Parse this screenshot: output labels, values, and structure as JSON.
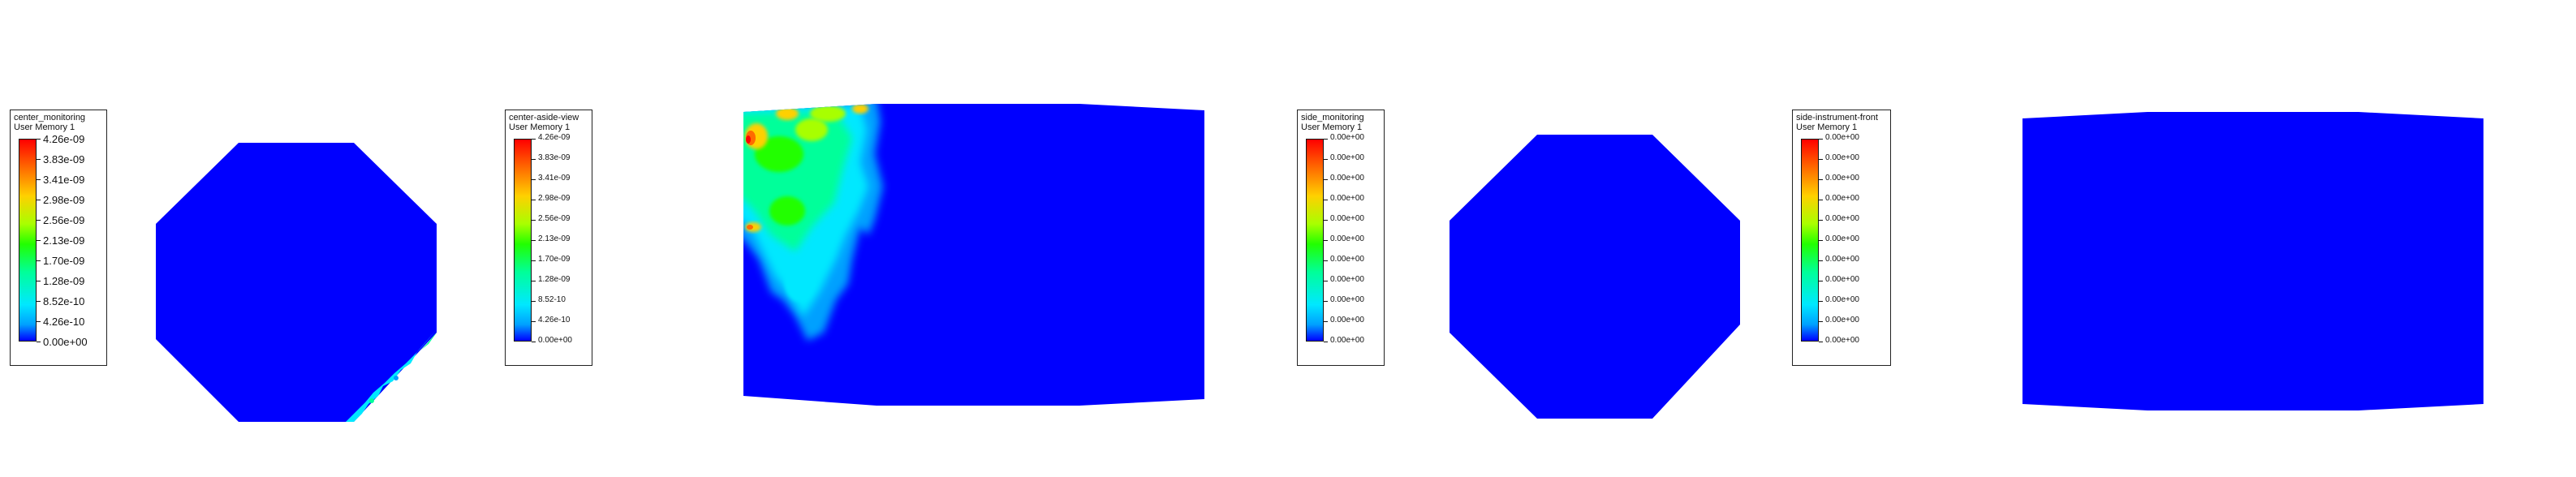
{
  "views": [
    {
      "legend": {
        "title": "center_monitoring",
        "variable": "User Memory 1",
        "labels": [
          "4.26e-09",
          "3.83e-09",
          "3.41e-09",
          "2.98e-09",
          "2.56e-09",
          "2.13e-09",
          "1.70e-09",
          "1.28e-09",
          "8.52e-10",
          "4.26e-10",
          "0.00e+00"
        ]
      }
    },
    {
      "legend": {
        "title": "center-aside-view",
        "variable": "User Memory 1",
        "labels": [
          "4.26e-09",
          "3.83e-09",
          "3.41e-09",
          "2.98e-09",
          "2.56e-09",
          "2.13e-09",
          "1.70e-09",
          "1.28e-09",
          "8.52-10",
          "4.26e-10",
          "0.00e+00"
        ]
      }
    },
    {
      "legend": {
        "title": "side_monitoring",
        "variable": "User Memory 1",
        "labels": [
          "0.00e+00",
          "0.00e+00",
          "0.00e+00",
          "0.00e+00",
          "0.00e+00",
          "0.00e+00",
          "0.00e+00",
          "0.00e+00",
          "0.00e+00",
          "0.00e+00",
          "0.00e+00"
        ]
      }
    },
    {
      "legend": {
        "title": "side-instrument-front",
        "variable": "User Memory 1",
        "labels": [
          "0.00e+00",
          "0.00e+00",
          "0.00e+00",
          "0.00e+00",
          "0.00e+00",
          "0.00e+00",
          "0.00e+00",
          "0.00e+00",
          "0.00e+00",
          "0.00e+00",
          "0.00e+00"
        ]
      }
    }
  ],
  "colors": {
    "field_background": "#0000ff",
    "colormap": [
      "#ff0000",
      "#ff6a00",
      "#ffd000",
      "#a8ff00",
      "#22ff00",
      "#00ff9a",
      "#00e8ff",
      "#00a0ff",
      "#0000ff"
    ]
  }
}
